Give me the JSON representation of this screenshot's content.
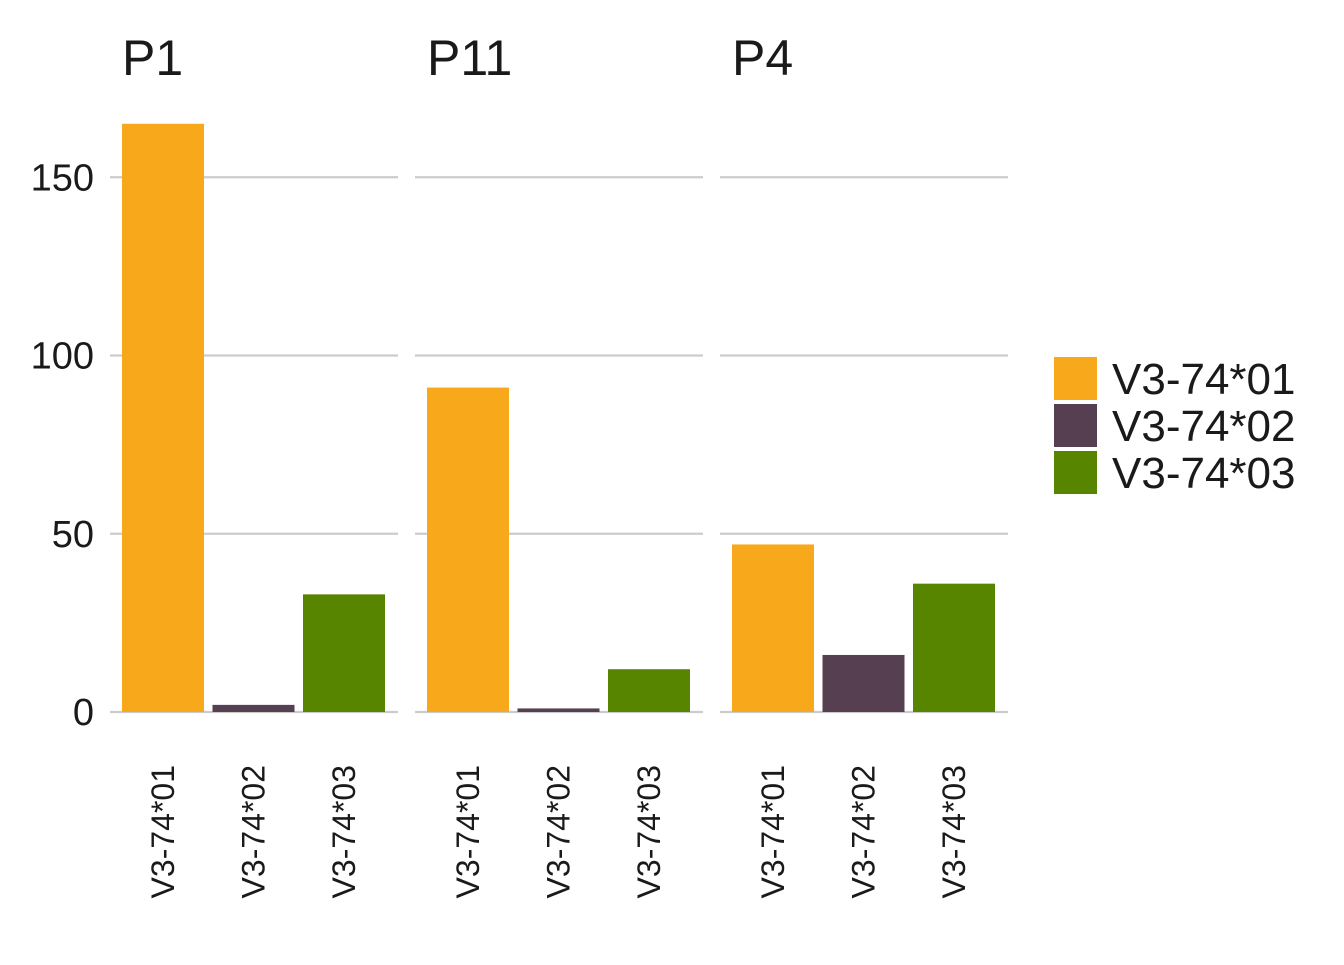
{
  "chart_data": {
    "type": "bar",
    "facets": [
      "P1",
      "P11",
      "P4"
    ],
    "categories": [
      "V3-74*01",
      "V3-74*02",
      "V3-74*03"
    ],
    "series": [
      {
        "facet": "P1",
        "values": [
          165,
          2,
          33
        ]
      },
      {
        "facet": "P11",
        "values": [
          91,
          1,
          12
        ]
      },
      {
        "facet": "P4",
        "values": [
          47,
          16,
          36
        ]
      }
    ],
    "colors": {
      "V3-74*01": "#F7A81B",
      "V3-74*02": "#553F51",
      "V3-74*03": "#578500"
    },
    "legend": [
      "V3-74*01",
      "V3-74*02",
      "V3-74*03"
    ],
    "legend_position": "right",
    "y_ticks": [
      0,
      50,
      100,
      150
    ],
    "ylim": [
      0,
      175
    ],
    "grid": "horizontal",
    "xlabel": "",
    "ylabel": ""
  }
}
